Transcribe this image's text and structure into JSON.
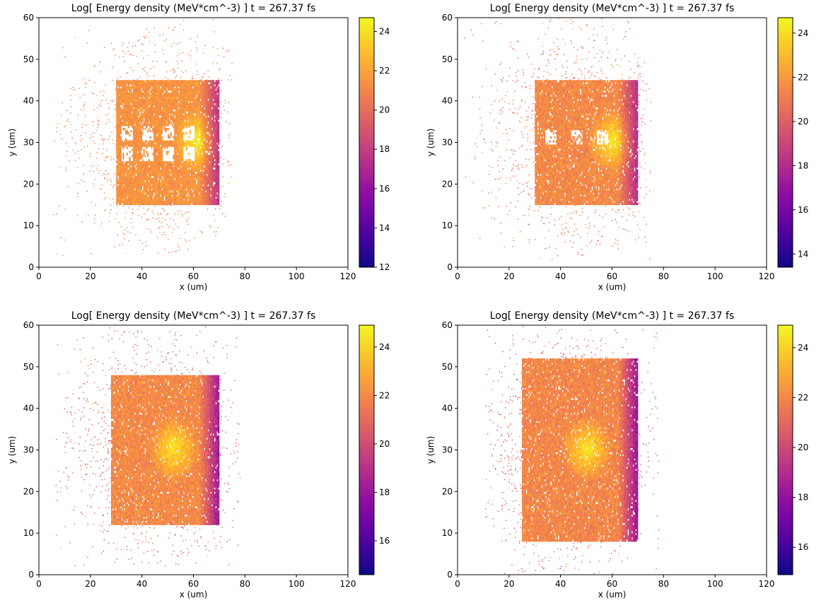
{
  "chart_data": [
    {
      "type": "heatmap",
      "title": "Log[ Energy density (MeV*cm^-3) ]  t = 267.37 fs",
      "xlabel": "x (um)",
      "ylabel": "y (um)",
      "xlim": [
        0,
        120
      ],
      "ylim": [
        0,
        60
      ],
      "xticks": [
        "0",
        "20",
        "40",
        "60",
        "80",
        "100",
        "120"
      ],
      "yticks": [
        "0",
        "10",
        "20",
        "30",
        "40",
        "50",
        "60"
      ],
      "colorbar": {
        "range": [
          12,
          24.7
        ],
        "ticks": [
          "12",
          "14",
          "16",
          "18",
          "20",
          "22",
          "24"
        ],
        "colormap": "plasma"
      },
      "structure": {
        "slab_x": [
          30,
          70
        ],
        "slab_y": [
          15,
          45
        ],
        "high_energy_region_center": [
          62,
          30
        ],
        "high_energy_peak": 24.5,
        "slab_interior_level": 21.5,
        "rear_edge_level": 17.5,
        "halo_extent_x": [
          5,
          75
        ],
        "halo_extent_y": [
          3,
          60
        ],
        "cavities": [
          [
            34,
            32
          ],
          [
            42,
            32
          ],
          [
            50,
            32
          ],
          [
            58,
            32
          ],
          [
            34,
            27
          ],
          [
            42,
            27
          ],
          [
            50,
            27
          ],
          [
            58,
            27
          ]
        ]
      }
    },
    {
      "type": "heatmap",
      "title": "Log[ Energy density (MeV*cm^-3) ]  t = 267.37 fs",
      "xlabel": "x (um)",
      "ylabel": "y (um)",
      "xlim": [
        0,
        120
      ],
      "ylim": [
        0,
        60
      ],
      "xticks": [
        "0",
        "20",
        "40",
        "60",
        "80",
        "100",
        "120"
      ],
      "yticks": [
        "0",
        "10",
        "20",
        "30",
        "40",
        "50",
        "60"
      ],
      "colorbar": {
        "range": [
          13.4,
          24.7
        ],
        "ticks": [
          "14",
          "16",
          "18",
          "20",
          "22",
          "24"
        ],
        "colormap": "plasma"
      },
      "structure": {
        "slab_x": [
          30,
          70
        ],
        "slab_y": [
          15,
          45
        ],
        "high_energy_region_center": [
          60,
          30
        ],
        "high_energy_peak": 24.3,
        "slab_interior_level": 21.5,
        "rear_edge_level": 18,
        "halo_extent_x": [
          2,
          75
        ],
        "halo_extent_y": [
          2,
          60
        ],
        "cavities": [
          [
            36,
            31
          ],
          [
            46,
            31
          ],
          [
            56,
            31
          ]
        ]
      }
    },
    {
      "type": "heatmap",
      "title": "Log[ Energy density (MeV*cm^-3) ]  t = 267.37 fs",
      "xlabel": "x (um)",
      "ylabel": "y (um)",
      "xlim": [
        0,
        120
      ],
      "ylim": [
        0,
        60
      ],
      "xticks": [
        "0",
        "20",
        "40",
        "60",
        "80",
        "100",
        "120"
      ],
      "yticks": [
        "0",
        "10",
        "20",
        "30",
        "40",
        "50",
        "60"
      ],
      "colorbar": {
        "range": [
          14.6,
          24.9
        ],
        "ticks": [
          "16",
          "18",
          "20",
          "22",
          "24"
        ],
        "colormap": "plasma"
      },
      "structure": {
        "slab_x": [
          28,
          70
        ],
        "slab_y": [
          12,
          48
        ],
        "high_energy_region_center": [
          52,
          30
        ],
        "high_energy_peak": 24.5,
        "slab_interior_level": 22,
        "rear_edge_level": 18,
        "halo_extent_x": [
          5,
          78
        ],
        "halo_extent_y": [
          2,
          60
        ],
        "cavities": []
      }
    },
    {
      "type": "heatmap",
      "title": "Log[ Energy density (MeV*cm^-3) ]  t = 267.37 fs",
      "xlabel": "x (um)",
      "ylabel": "y (um)",
      "xlim": [
        0,
        120
      ],
      "ylim": [
        0,
        60
      ],
      "xticks": [
        "0",
        "20",
        "40",
        "60",
        "80",
        "100",
        "120"
      ],
      "yticks": [
        "0",
        "10",
        "20",
        "30",
        "40",
        "50",
        "60"
      ],
      "colorbar": {
        "range": [
          14.9,
          24.9
        ],
        "ticks": [
          "16",
          "18",
          "20",
          "22",
          "24"
        ],
        "colormap": "plasma"
      },
      "structure": {
        "slab_x": [
          25,
          70
        ],
        "slab_y": [
          8,
          52
        ],
        "high_energy_region_center": [
          50,
          30
        ],
        "high_energy_peak": 24.6,
        "slab_interior_level": 22,
        "rear_edge_level": 18,
        "halo_extent_x": [
          10,
          78
        ],
        "halo_extent_y": [
          0,
          60
        ],
        "cavities": []
      }
    }
  ]
}
